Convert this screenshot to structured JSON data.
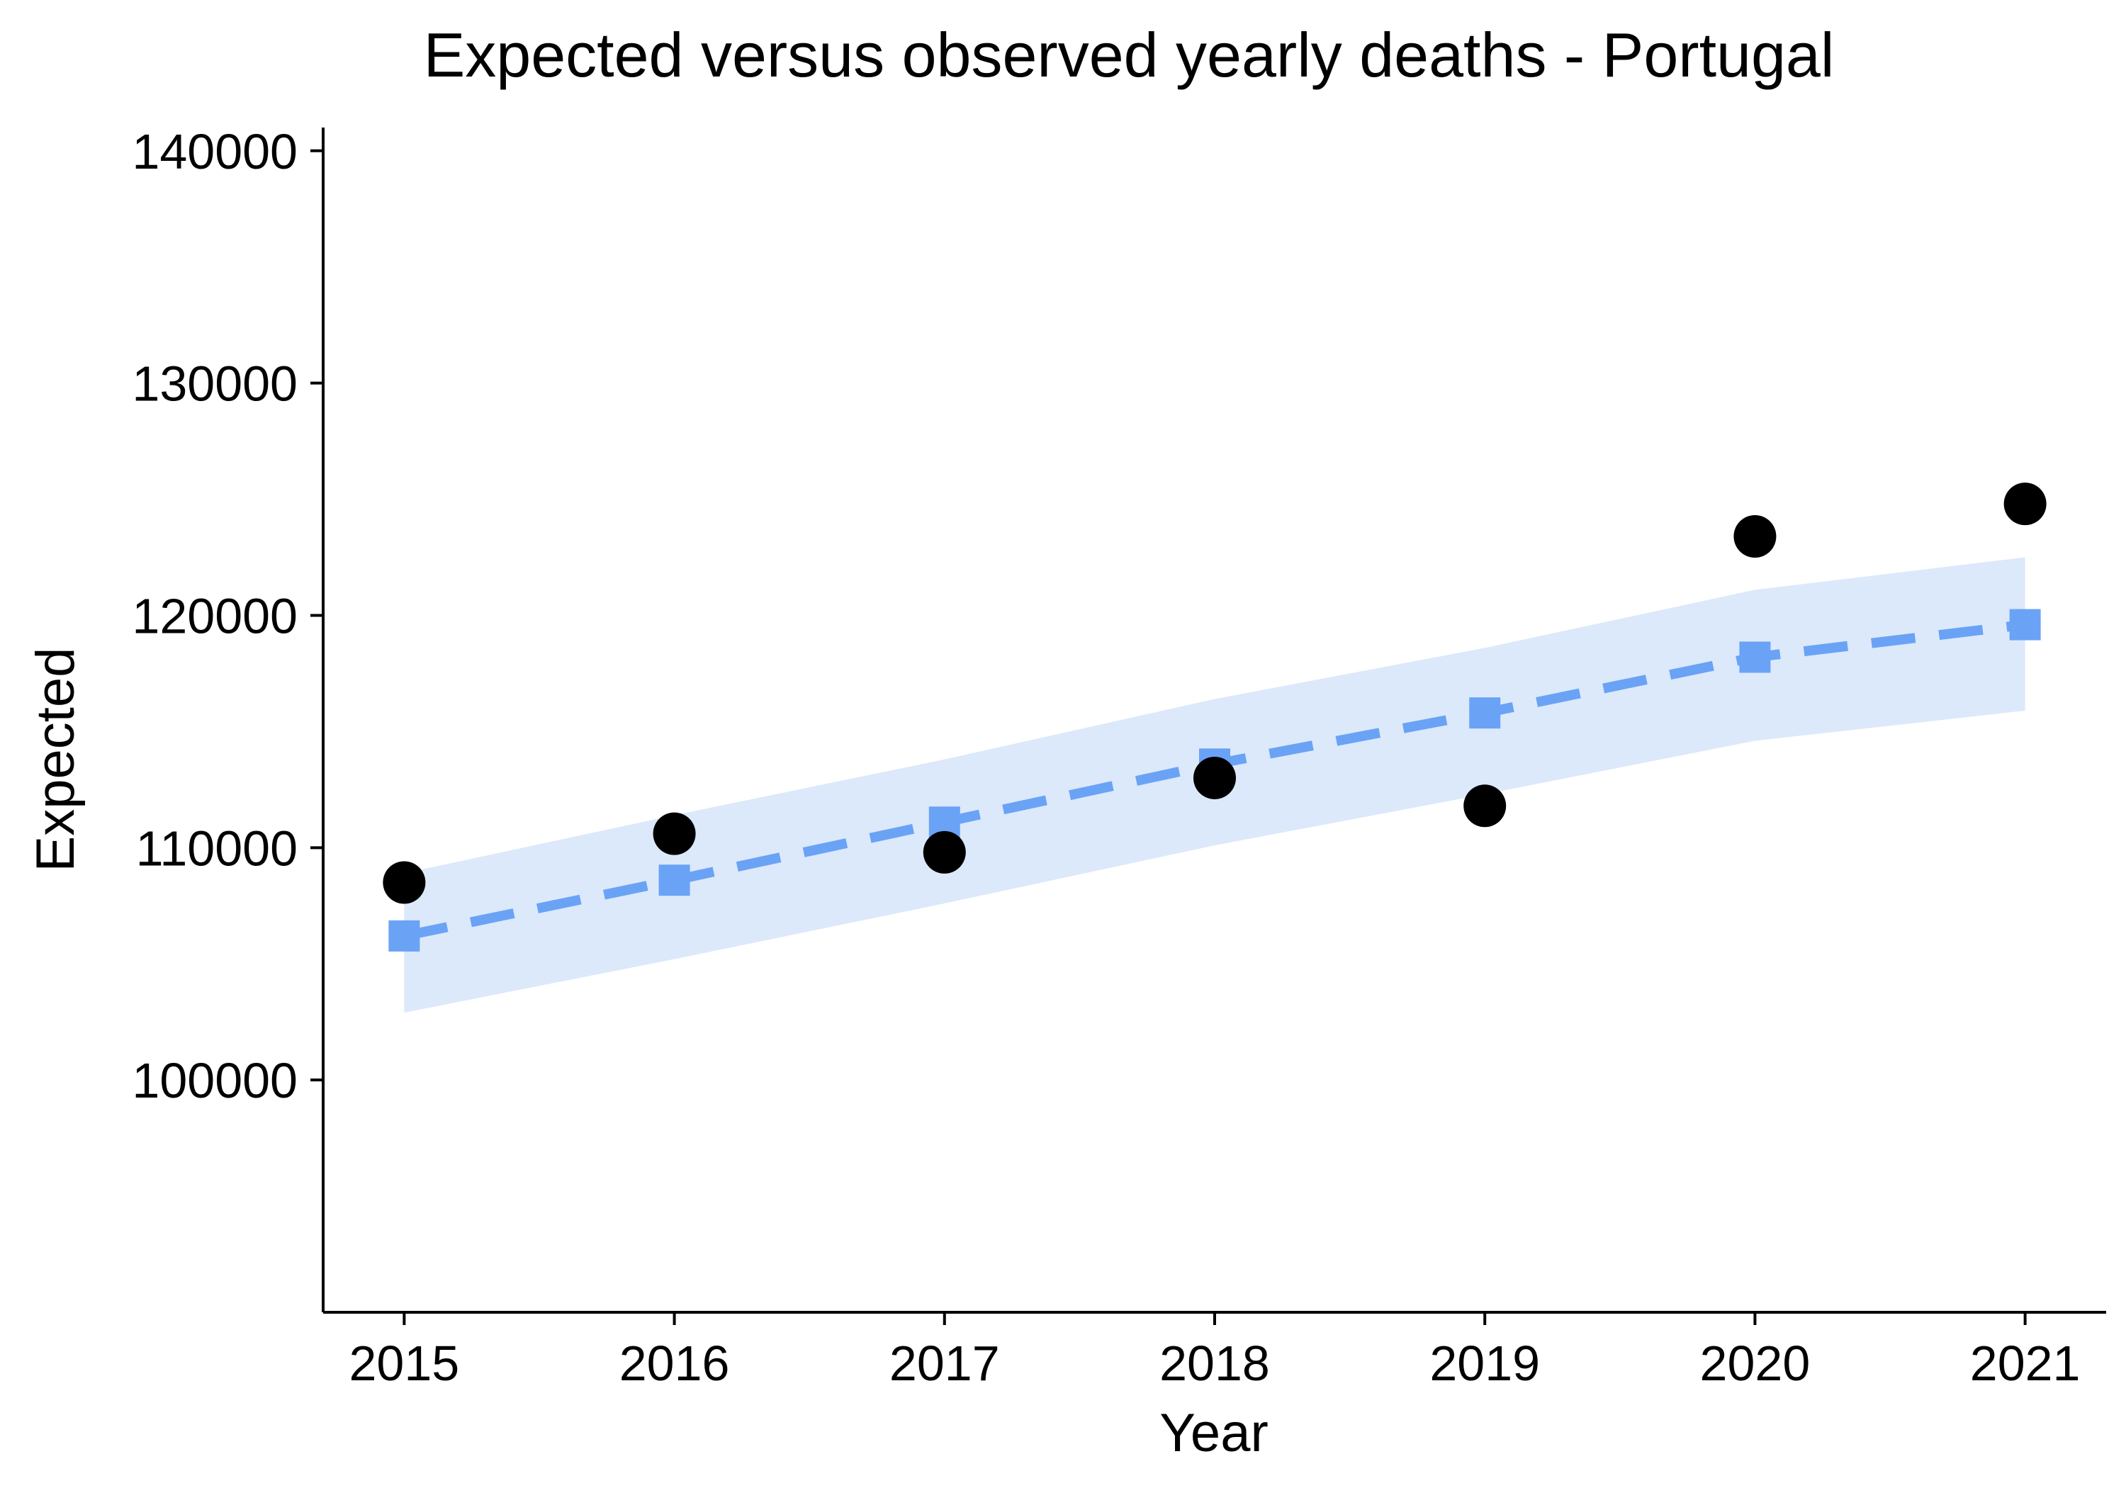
{
  "chart_data": {
    "type": "line",
    "title": "Expected versus observed yearly deaths - Portugal",
    "xlabel": "Year",
    "ylabel": "Expected",
    "x": [
      2015,
      2016,
      2017,
      2018,
      2019,
      2020,
      2021
    ],
    "x_tick_labels": [
      "2015",
      "2016",
      "2017",
      "2018",
      "2019",
      "2020",
      "2021"
    ],
    "xlim": [
      2014.7,
      2021.3
    ],
    "ylim": [
      90000,
      141000
    ],
    "y_ticks": [
      100000,
      110000,
      120000,
      130000,
      140000
    ],
    "y_tick_labels": [
      "100000",
      "110000",
      "120000",
      "130000",
      "140000"
    ],
    "grid": false,
    "series": [
      {
        "role": "expected",
        "style": "dashed line with square markers",
        "color": "#6aa3f5",
        "values": [
          106200,
          108600,
          111100,
          113600,
          115800,
          118200,
          119600
        ]
      },
      {
        "role": "expected_interval",
        "style": "shaded band",
        "color": "#dce9fb",
        "lower": [
          102900,
          105200,
          107600,
          110100,
          112300,
          114600,
          115900
        ],
        "upper": [
          108900,
          111400,
          113800,
          116400,
          118600,
          121100,
          122500
        ]
      },
      {
        "role": "observed",
        "style": "points",
        "color": "#000000",
        "values": [
          108500,
          110600,
          109800,
          113000,
          111800,
          123400,
          124800
        ]
      }
    ]
  }
}
